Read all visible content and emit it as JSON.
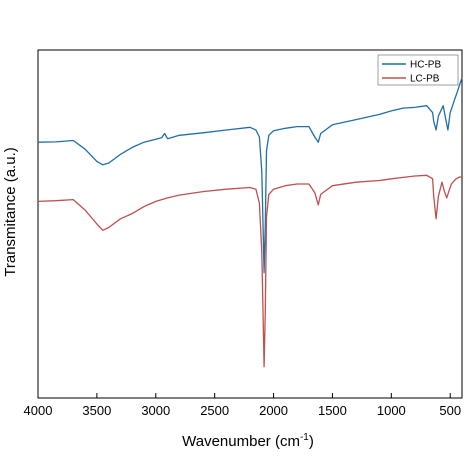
{
  "chart_data": {
    "type": "line",
    "xlabel": "Wavenumber (cm",
    "xlabel_sup": "-1",
    "xlabel_close": ")",
    "ylabel": "Transmitance (a.u.)",
    "xlim": [
      4000,
      400
    ],
    "x_reversed": true,
    "ylim": [
      0,
      100
    ],
    "yticks_shown": false,
    "grid": false,
    "legend_position": "top-right",
    "xticks": [
      4000,
      3500,
      3000,
      2500,
      2000,
      1500,
      1000,
      500
    ],
    "series": [
      {
        "name": "HC-PB",
        "color": "#1f6fa8",
        "x": [
          4000,
          3850,
          3700,
          3600,
          3500,
          3450,
          3400,
          3300,
          3200,
          3100,
          2950,
          2925,
          2900,
          2800,
          2600,
          2400,
          2200,
          2150,
          2120,
          2100,
          2090,
          2080,
          2070,
          2060,
          2040,
          2000,
          1900,
          1800,
          1700,
          1650,
          1620,
          1600,
          1500,
          1300,
          1100,
          1000,
          900,
          800,
          700,
          650,
          640,
          620,
          600,
          560,
          540,
          520,
          500,
          480,
          460,
          440,
          420,
          400
        ],
        "y": [
          73.5,
          73.6,
          74,
          71.5,
          68,
          67,
          67.5,
          70,
          72,
          73.5,
          74.8,
          76,
          74.5,
          75.5,
          76.2,
          77,
          77.8,
          77,
          75,
          65,
          50,
          36,
          50,
          71,
          75.5,
          76.8,
          77.5,
          78,
          78,
          75,
          73.5,
          76,
          78.5,
          80,
          81.5,
          82.5,
          83.3,
          83.5,
          84,
          82,
          79.5,
          77,
          81,
          84,
          80.5,
          77,
          82,
          84,
          86,
          88,
          90,
          92
        ]
      },
      {
        "name": "LC-PB",
        "color": "#c0504d",
        "x": [
          4000,
          3850,
          3700,
          3600,
          3500,
          3450,
          3400,
          3300,
          3200,
          3100,
          3000,
          2900,
          2800,
          2600,
          2400,
          2200,
          2150,
          2120,
          2100,
          2090,
          2080,
          2070,
          2060,
          2040,
          2000,
          1900,
          1800,
          1700,
          1650,
          1620,
          1600,
          1500,
          1300,
          1100,
          1000,
          900,
          800,
          700,
          650,
          640,
          620,
          600,
          570,
          550,
          530,
          510,
          490,
          470,
          450,
          420,
          400
        ],
        "y": [
          56.5,
          56.7,
          57,
          54,
          50,
          48.2,
          49,
          51.5,
          53,
          55,
          56.5,
          57.5,
          58.3,
          59.3,
          60,
          60.5,
          60,
          56,
          42,
          25,
          9,
          25,
          52,
          58.5,
          60,
          61,
          61.5,
          61.5,
          59,
          55.5,
          58.5,
          61,
          62,
          62.5,
          63,
          63.4,
          63.8,
          64,
          63,
          58,
          51.5,
          58,
          62,
          59.5,
          57.5,
          59.5,
          61.5,
          62.3,
          63,
          63.5,
          63.5
        ]
      }
    ]
  }
}
